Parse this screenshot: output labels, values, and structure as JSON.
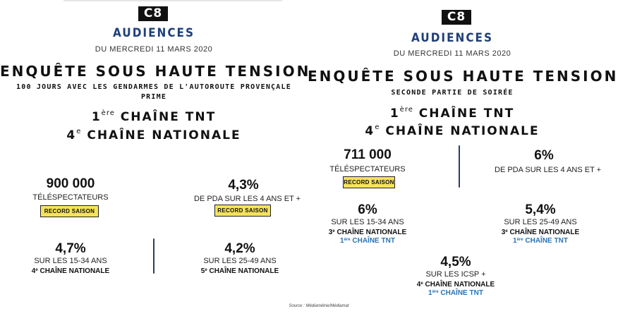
{
  "left": {
    "logo": "C8",
    "audiences": "AUDIENCES",
    "date": "DU MERCREDI 11 MARS 2020",
    "title": "ENQUÊTE SOUS HAUTE TENSION",
    "subtitle": "100 JOURS AVEC LES GENDARMES DE L'AUTOROUTE PROVENÇALE",
    "subtitle2": "PRIME",
    "rank1_num": "1",
    "rank1_sup": "ère",
    "rank1_text": "CHAÎNE TNT",
    "rank2_num": "4",
    "rank2_sup": "e",
    "rank2_text": "CHAÎNE NATIONALE",
    "stat_viewers_value": "900 000",
    "stat_viewers_label": "TÉLÉSPECTATEURS",
    "stat_viewers_badge": "RECORD SAISON",
    "stat_pda_value": "4,3%",
    "stat_pda_label": "DE PDA SUR LES 4 ANS ET +",
    "stat_pda_badge": "RECORD SAISON",
    "stat_1534_value": "4,7%",
    "stat_1534_label": "SUR LES 15-34 ANS",
    "stat_1534_rank_num": "4",
    "stat_1534_rank_sup": "e",
    "stat_1534_rank_text": "CHAÎNE NATIONALE",
    "stat_2549_value": "4,2%",
    "stat_2549_label": "SUR LES 25-49 ANS",
    "stat_2549_rank_num": "5",
    "stat_2549_rank_sup": "e",
    "stat_2549_rank_text": "CHAÎNE NATIONALE"
  },
  "right": {
    "logo": "C8",
    "audiences": "AUDIENCES",
    "date": "DU MERCREDI 11 MARS 2020",
    "title": "ENQUÊTE SOUS HAUTE TENSION",
    "subtitle": "SECONDE PARTIE DE SOIRÉE",
    "rank1_num": "1",
    "rank1_sup": "ère",
    "rank1_text": "CHAÎNE TNT",
    "rank2_num": "4",
    "rank2_sup": "e",
    "rank2_text": "CHAÎNE NATIONALE",
    "stat_viewers_value": "711 000",
    "stat_viewers_label": "TÉLÉSPECTATEURS",
    "stat_viewers_badge": "RECORD SAISON",
    "stat_pda_value": "6%",
    "stat_pda_label": "DE PDA SUR LES 4 ANS ET +",
    "stat_1534_value": "6%",
    "stat_1534_label": "SUR LES 15-34 ANS",
    "stat_1534_rank_num": "3",
    "stat_1534_rank_sup": "e",
    "stat_1534_rank_text": "CHAÎNE NATIONALE",
    "stat_1534_tnt_num": "1",
    "stat_1534_tnt_sup": "ère",
    "stat_1534_tnt_text": "CHAÎNE TNT",
    "stat_2549_value": "5,4%",
    "stat_2549_label": "SUR LES 25-49 ANS",
    "stat_2549_rank_num": "3",
    "stat_2549_rank_sup": "e",
    "stat_2549_rank_text": "CHAÎNE NATIONALE",
    "stat_2549_tnt_num": "1",
    "stat_2549_tnt_sup": "ère",
    "stat_2549_tnt_text": "CHAÎNE TNT",
    "stat_icsp_value": "4,5%",
    "stat_icsp_label": "SUR LES ICSP +",
    "stat_icsp_rank_num": "4",
    "stat_icsp_rank_sup": "e",
    "stat_icsp_rank_text": "CHAÎNE NATIONALE",
    "stat_icsp_tnt_num": "1",
    "stat_icsp_tnt_sup": "ère",
    "stat_icsp_tnt_text": "CHAÎNE TNT"
  },
  "source": "Source : Médiamétrie/Médiamat",
  "colors": {
    "audiences": "#1f3f78",
    "badge": "#f6e35a",
    "tnt_blue": "#2a73b7",
    "divider": "#2b3f63"
  }
}
